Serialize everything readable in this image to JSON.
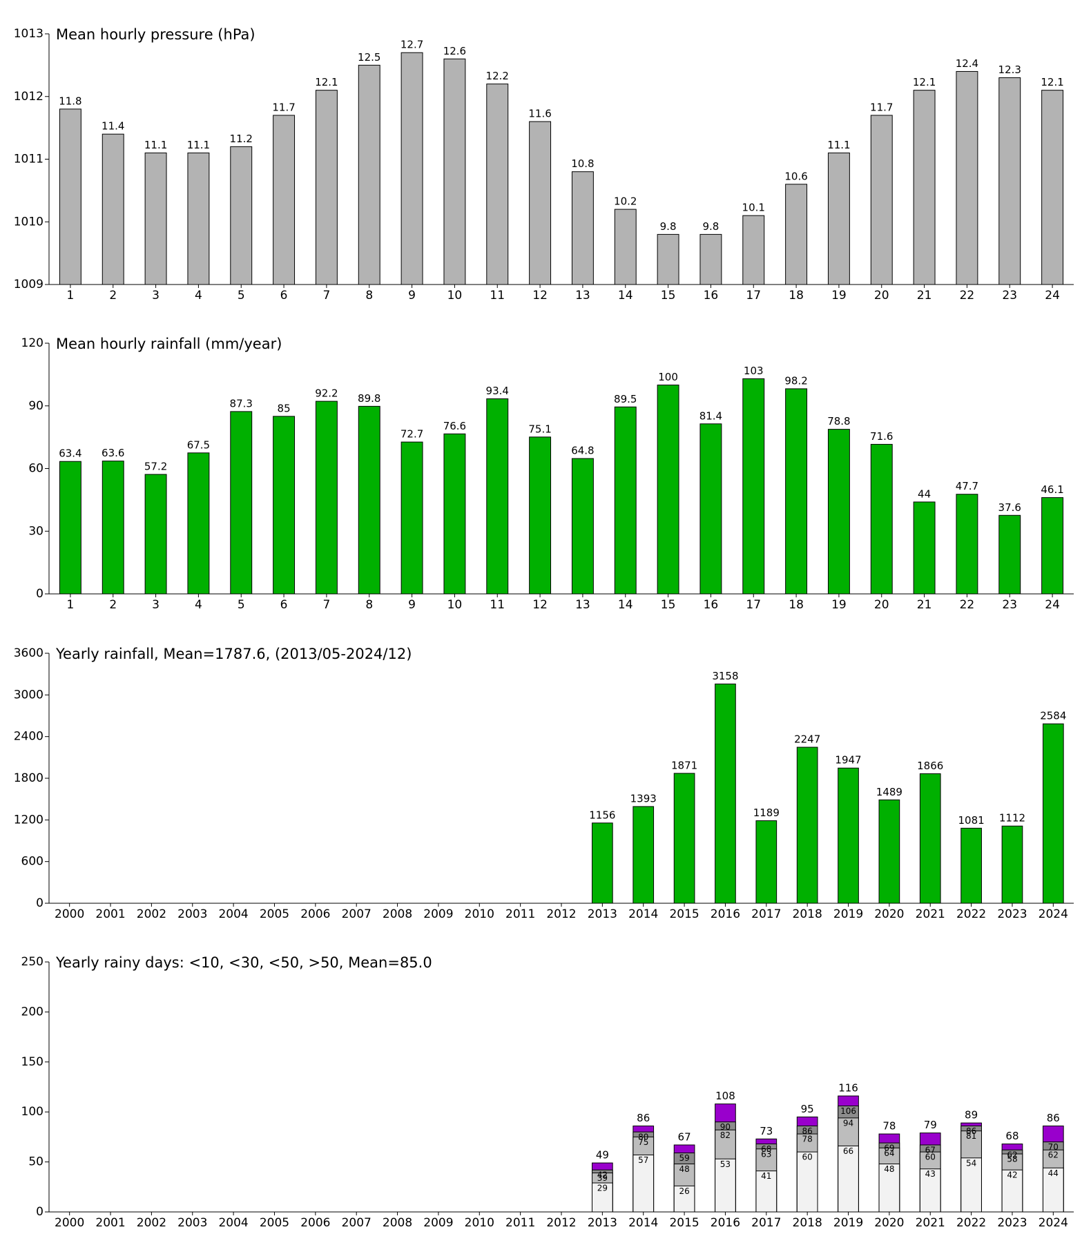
{
  "chart_data": [
    {
      "type": "bar",
      "title": "Mean hourly pressure (hPa)",
      "categories": [
        "1",
        "2",
        "3",
        "4",
        "5",
        "6",
        "7",
        "8",
        "9",
        "10",
        "11",
        "12",
        "13",
        "14",
        "15",
        "16",
        "17",
        "18",
        "19",
        "20",
        "21",
        "22",
        "23",
        "24"
      ],
      "values": [
        1011.8,
        1011.4,
        1011.1,
        1011.1,
        1011.2,
        1011.7,
        1012.1,
        1012.5,
        1012.7,
        1012.6,
        1012.2,
        1011.6,
        1010.8,
        1010.2,
        1009.8,
        1009.8,
        1010.1,
        1010.6,
        1011.1,
        1011.7,
        1012.1,
        1012.4,
        1012.3,
        1012.1
      ],
      "value_labels": [
        "11.8",
        "11.4",
        "11.1",
        "11.1",
        "11.2",
        "11.7",
        "12.1",
        "12.5",
        "12.7",
        "12.6",
        "12.2",
        "11.6",
        "10.8",
        "10.2",
        "9.8",
        "9.8",
        "10.1",
        "10.6",
        "11.1",
        "11.7",
        "12.1",
        "12.4",
        "12.3",
        "12.1"
      ],
      "color": "#b3b3b3",
      "ylim": [
        1009,
        1013
      ],
      "yticks": [
        1009,
        1010,
        1011,
        1012,
        1013
      ]
    },
    {
      "type": "bar",
      "title": "Mean hourly rainfall (mm/year)",
      "categories": [
        "1",
        "2",
        "3",
        "4",
        "5",
        "6",
        "7",
        "8",
        "9",
        "10",
        "11",
        "12",
        "13",
        "14",
        "15",
        "16",
        "17",
        "18",
        "19",
        "20",
        "21",
        "22",
        "23",
        "24"
      ],
      "values": [
        63.4,
        63.6,
        57.2,
        67.5,
        87.3,
        85,
        92.2,
        89.8,
        72.7,
        76.6,
        93.4,
        75.1,
        64.8,
        89.5,
        100,
        81.4,
        103,
        98.2,
        78.8,
        71.6,
        44,
        47.7,
        37.6,
        46.1
      ],
      "color": "#00b000",
      "ylim": [
        0,
        120
      ],
      "yticks": [
        0,
        30,
        60,
        90,
        120
      ]
    },
    {
      "type": "bar",
      "title": "Yearly rainfall, Mean=1787.6, (2013/05-2024/12)",
      "categories": [
        "2000",
        "2001",
        "2002",
        "2003",
        "2004",
        "2005",
        "2006",
        "2007",
        "2008",
        "2009",
        "2010",
        "2011",
        "2012",
        "2013",
        "2014",
        "2015",
        "2016",
        "2017",
        "2018",
        "2019",
        "2020",
        "2021",
        "2022",
        "2023",
        "2024"
      ],
      "values": [
        null,
        null,
        null,
        null,
        null,
        null,
        null,
        null,
        null,
        null,
        null,
        null,
        null,
        1156,
        1393,
        1871,
        3158,
        1189,
        2247,
        1947,
        1489,
        1866,
        1081,
        1112,
        2584
      ],
      "color": "#00b000",
      "ylim": [
        0,
        3600
      ],
      "yticks": [
        0,
        600,
        1200,
        1800,
        2400,
        3000,
        3600
      ]
    },
    {
      "type": "bar",
      "title": "Yearly rainy days: <10, <30, <50, >50, Mean=85.0",
      "categories": [
        "2000",
        "2001",
        "2002",
        "2003",
        "2004",
        "2005",
        "2006",
        "2007",
        "2008",
        "2009",
        "2010",
        "2011",
        "2012",
        "2013",
        "2014",
        "2015",
        "2016",
        "2017",
        "2018",
        "2019",
        "2020",
        "2021",
        "2022",
        "2023",
        "2024"
      ],
      "series": [
        {
          "color": "#f2f2f2",
          "values": [
            null,
            null,
            null,
            null,
            null,
            null,
            null,
            null,
            null,
            null,
            null,
            null,
            null,
            29,
            57,
            26,
            53,
            41,
            60,
            66,
            48,
            43,
            54,
            42,
            44
          ]
        },
        {
          "color": "#bdbdbd",
          "values": [
            null,
            null,
            null,
            null,
            null,
            null,
            null,
            null,
            null,
            null,
            null,
            null,
            null,
            39,
            75,
            48,
            82,
            63,
            78,
            94,
            64,
            60,
            81,
            58,
            62
          ]
        },
        {
          "color": "#8c8c8c",
          "values": [
            null,
            null,
            null,
            null,
            null,
            null,
            null,
            null,
            null,
            null,
            null,
            null,
            null,
            42,
            80,
            59,
            90,
            68,
            86,
            106,
            69,
            67,
            86,
            62,
            70
          ]
        },
        {
          "color": "#9900cc",
          "values": [
            null,
            null,
            null,
            null,
            null,
            null,
            null,
            null,
            null,
            null,
            null,
            null,
            null,
            49,
            86,
            67,
            108,
            73,
            95,
            116,
            78,
            79,
            89,
            68,
            86
          ]
        }
      ],
      "ylim": [
        0,
        250
      ],
      "yticks": [
        0,
        50,
        100,
        150,
        200,
        250
      ]
    }
  ]
}
